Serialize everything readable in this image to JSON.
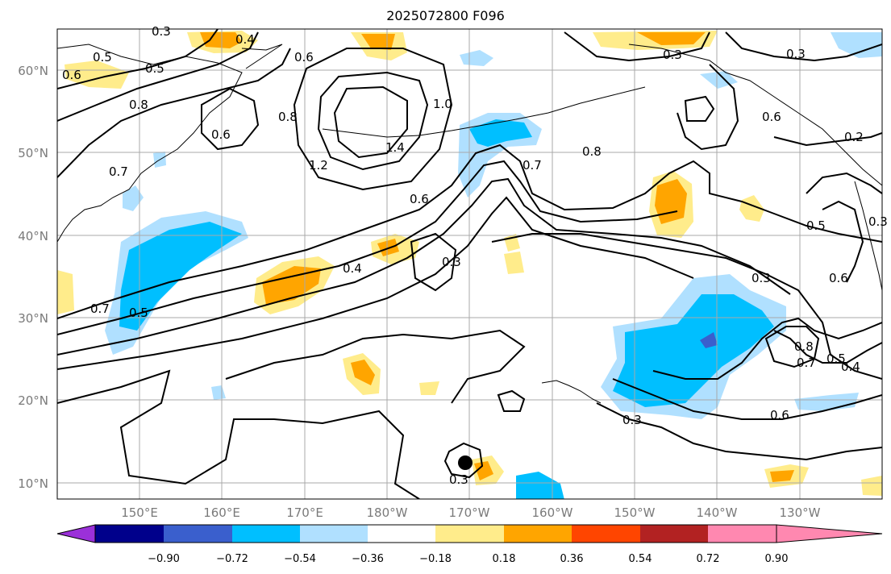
{
  "title": "2025072800 F096",
  "lat_labels": [
    "60°N",
    "50°N",
    "40°N",
    "30°N",
    "20°N",
    "10°N"
  ],
  "lon_labels": [
    "150°E",
    "160°E",
    "170°E",
    "180°W",
    "170°W",
    "160°W",
    "150°W",
    "140°W",
    "130°W"
  ],
  "colorbar": {
    "colors": [
      "#9b30d9",
      "#00008b",
      "#3a5fcd",
      "#00bfff",
      "#b0e0ff",
      "#ffffff",
      "#ffec8b",
      "#ffa500",
      "#ff4500",
      "#b22222",
      "#ff88b0"
    ],
    "tick_labels": [
      "−0.90",
      "−0.72",
      "−0.54",
      "−0.36",
      "−0.18",
      "0.18",
      "0.36",
      "0.54",
      "0.72",
      "0.90"
    ]
  },
  "contour_labels": [
    "0.3",
    "0.4",
    "0.5",
    "0.5",
    "0.8",
    "0.6",
    "0.6",
    "0.8",
    "1.0",
    "1.2",
    "1.4",
    "0.6",
    "0.7",
    "0.7",
    "0.8",
    "0.3",
    "0.3",
    "0.2",
    "0.5",
    "0.6",
    "0.3",
    "0.8",
    "0.7",
    "0.5",
    "0.4",
    "0.6",
    "0.3",
    "0.4",
    "0.3",
    "0.5",
    "0.7",
    "0.3",
    "0.6",
    "0.3",
    "0.6"
  ],
  "marker": "storm-center"
}
